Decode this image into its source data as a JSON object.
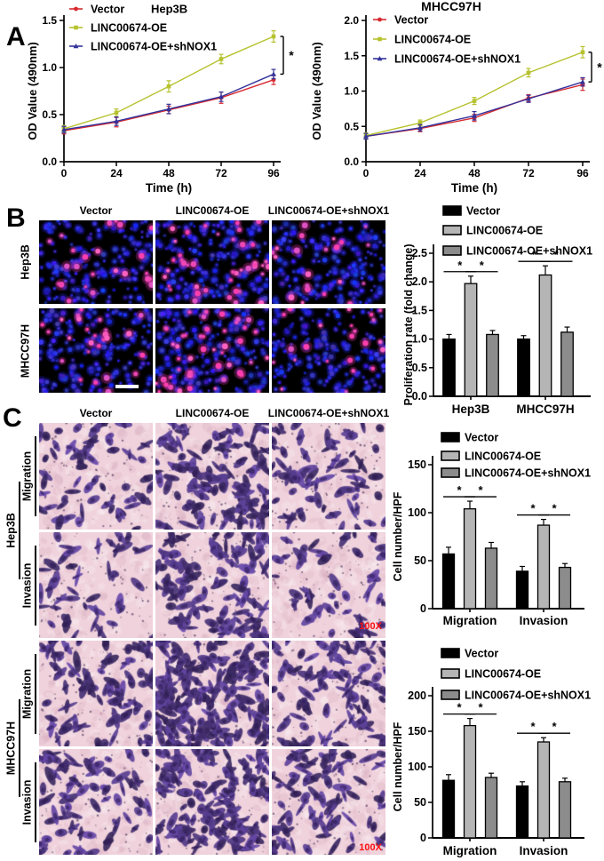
{
  "panels": {
    "a": "A",
    "b": "B",
    "c": "C"
  },
  "colors": {
    "red": "#d62a30",
    "olive": "#b6c22e",
    "blue": "#33339c",
    "bar_black": "#000000",
    "bar_light": "#b5b5b5",
    "bar_mid": "#8c8c8c",
    "edu_background": "#000000",
    "edu_blue": "#2a2ae0",
    "edu_pink": "#ef4cb8",
    "transwell_background": "#f0d2dc",
    "transwell_cell": "#5a3d8c",
    "mag_red": "#ff1010"
  },
  "chart_data": [
    {
      "id": "hep3b_od",
      "type": "line",
      "title": "Hep3B",
      "xlabel": "Time (h)",
      "ylabel": "OD Value (490nm)",
      "x": [
        0,
        24,
        48,
        72,
        96
      ],
      "xticklabels": [
        "0",
        "24",
        "48",
        "72",
        "96"
      ],
      "ylim": [
        0,
        1.5
      ],
      "yticks": [
        0,
        0.5,
        1,
        1.5
      ],
      "tick_decimals": 1,
      "legend_position": "top-left-inside",
      "series": [
        {
          "name": "Vector",
          "color": "#d62a30",
          "marker": "circle",
          "values": [
            0.33,
            0.42,
            0.55,
            0.68,
            0.87
          ],
          "errors": [
            0.035,
            0.05,
            0.04,
            0.06,
            0.05
          ]
        },
        {
          "name": "LINC00674-OE",
          "color": "#b6c22e",
          "marker": "square",
          "values": [
            0.35,
            0.52,
            0.8,
            1.09,
            1.33
          ],
          "errors": [
            0.035,
            0.04,
            0.06,
            0.05,
            0.06
          ]
        },
        {
          "name": "LINC00674-OE+shNOX1",
          "color": "#33339c",
          "marker": "triangle",
          "values": [
            0.34,
            0.43,
            0.56,
            0.69,
            0.93
          ],
          "errors": [
            0.035,
            0.045,
            0.05,
            0.05,
            0.05
          ]
        }
      ],
      "significance": {
        "label": "*",
        "from_series": 1,
        "to_series": 2,
        "at_x": 96
      }
    },
    {
      "id": "mhcc97h_od",
      "type": "line",
      "title": "MHCC97H",
      "xlabel": "Time (h)",
      "ylabel": "OD Value (490nm)",
      "x": [
        0,
        24,
        48,
        72,
        96
      ],
      "xticklabels": [
        "0",
        "24",
        "48",
        "72",
        "96"
      ],
      "ylim": [
        0,
        2.0
      ],
      "yticks": [
        0,
        0.5,
        1,
        1.5,
        2
      ],
      "tick_decimals": 1,
      "legend_position": "top-left-inside",
      "series": [
        {
          "name": "Vector",
          "color": "#d62a30",
          "marker": "circle",
          "values": [
            0.36,
            0.47,
            0.62,
            0.9,
            1.09
          ],
          "errors": [
            0.04,
            0.045,
            0.05,
            0.05,
            0.08
          ]
        },
        {
          "name": "LINC00674-OE",
          "color": "#b6c22e",
          "marker": "square",
          "values": [
            0.37,
            0.55,
            0.86,
            1.26,
            1.55
          ],
          "errors": [
            0.04,
            0.04,
            0.05,
            0.06,
            0.08
          ]
        },
        {
          "name": "LINC00674-OE+shNOX1",
          "color": "#33339c",
          "marker": "triangle",
          "values": [
            0.36,
            0.48,
            0.65,
            0.89,
            1.13
          ],
          "errors": [
            0.04,
            0.045,
            0.06,
            0.05,
            0.06
          ]
        }
      ],
      "significance": {
        "label": "*",
        "from_series": 1,
        "to_series": 2,
        "at_x": 96
      }
    },
    {
      "id": "edu_proliferation",
      "type": "bar",
      "ylabel": "Proliferation rate (fold change)",
      "categories": [
        "Hep3B",
        "MHCC97H"
      ],
      "ylim": [
        0,
        2.5
      ],
      "yticks": [
        0,
        0.5,
        1,
        1.5,
        2,
        2.5
      ],
      "tick_decimals": 1,
      "legend_position": "top",
      "series": [
        {
          "name": "Vector",
          "color": "#000000",
          "values": [
            1.0,
            1.0
          ],
          "errors": [
            0.08,
            0.06
          ]
        },
        {
          "name": "LINC00674-OE",
          "color": "#b5b5b5",
          "values": [
            1.97,
            2.12
          ],
          "errors": [
            0.13,
            0.16
          ]
        },
        {
          "name": "LINC00674-OE+shNOX1",
          "color": "#8c8c8c",
          "values": [
            1.08,
            1.12
          ],
          "errors": [
            0.07,
            0.09
          ]
        }
      ],
      "significance": {
        "label": "*",
        "pairs": [
          [
            0,
            1
          ],
          [
            1,
            2
          ]
        ]
      }
    },
    {
      "id": "hep3b_transwell",
      "type": "bar",
      "ylabel": "Cell number/HPF",
      "categories": [
        "Migration",
        "Invasion"
      ],
      "ylim": [
        0,
        150
      ],
      "yticks": [
        0,
        50,
        100,
        150
      ],
      "tick_decimals": 0,
      "legend_position": "top",
      "series": [
        {
          "name": "Vector",
          "color": "#000000",
          "values": [
            57,
            39
          ],
          "errors": [
            7,
            5
          ]
        },
        {
          "name": "LINC00674-OE",
          "color": "#b5b5b5",
          "values": [
            104,
            87
          ],
          "errors": [
            8,
            6
          ]
        },
        {
          "name": "LINC00674-OE+shNOX1",
          "color": "#8c8c8c",
          "values": [
            63,
            43
          ],
          "errors": [
            6,
            4
          ]
        }
      ],
      "significance": {
        "label": "*",
        "pairs": [
          [
            0,
            1
          ],
          [
            1,
            2
          ]
        ]
      }
    },
    {
      "id": "mhcc97h_transwell",
      "type": "bar",
      "ylabel": "Cell number/HPF",
      "categories": [
        "Migration",
        "Invasion"
      ],
      "ylim": [
        0,
        200
      ],
      "yticks": [
        0,
        50,
        100,
        150,
        200
      ],
      "tick_decimals": 0,
      "legend_position": "top",
      "series": [
        {
          "name": "Vector",
          "color": "#000000",
          "values": [
            81,
            73
          ],
          "errors": [
            8,
            6
          ]
        },
        {
          "name": "LINC00674-OE",
          "color": "#b5b5b5",
          "values": [
            158,
            135
          ],
          "errors": [
            10,
            6
          ]
        },
        {
          "name": "LINC00674-OE+shNOX1",
          "color": "#8c8c8c",
          "values": [
            85,
            79
          ],
          "errors": [
            6,
            5
          ]
        }
      ],
      "significance": {
        "label": "*",
        "pairs": [
          [
            0,
            1
          ],
          [
            1,
            2
          ]
        ]
      }
    }
  ],
  "panelB": {
    "col_headers": [
      "Vector",
      "LINC00674-OE",
      "LINC00674-OE+shNOX1"
    ],
    "row_labels": [
      "Hep3B",
      "MHCC97H"
    ],
    "has_scale_bar": true,
    "images": [
      {
        "row": "Hep3B",
        "col": "Vector",
        "blue_cells": 180,
        "pink_cells": 24
      },
      {
        "row": "Hep3B",
        "col": "LINC00674-OE",
        "blue_cells": 190,
        "pink_cells": 42
      },
      {
        "row": "Hep3B",
        "col": "LINC00674-OE+shNOX1",
        "blue_cells": 175,
        "pink_cells": 21
      },
      {
        "row": "MHCC97H",
        "col": "Vector",
        "blue_cells": 185,
        "pink_cells": 26
      },
      {
        "row": "MHCC97H",
        "col": "LINC00674-OE",
        "blue_cells": 195,
        "pink_cells": 46
      },
      {
        "row": "MHCC97H",
        "col": "LINC00674-OE+shNOX1",
        "blue_cells": 180,
        "pink_cells": 23
      }
    ]
  },
  "panelC": {
    "col_headers": [
      "Vector",
      "LINC00674-OE",
      "LINC00674-OE+shNOX1"
    ],
    "groups": [
      {
        "name": "Hep3B",
        "rows": [
          "Migration",
          "Invasion"
        ]
      },
      {
        "name": "MHCC97H",
        "rows": [
          "Migration",
          "Invasion"
        ]
      }
    ],
    "magnification_label": "100X",
    "images": [
      {
        "group": "Hep3B",
        "row": "Migration",
        "col": "Vector",
        "cells": 60
      },
      {
        "group": "Hep3B",
        "row": "Migration",
        "col": "LINC00674-OE",
        "cells": 112
      },
      {
        "group": "Hep3B",
        "row": "Migration",
        "col": "LINC00674-OE+shNOX1",
        "cells": 68
      },
      {
        "group": "Hep3B",
        "row": "Invasion",
        "col": "Vector",
        "cells": 42
      },
      {
        "group": "Hep3B",
        "row": "Invasion",
        "col": "LINC00674-OE",
        "cells": 98
      },
      {
        "group": "Hep3B",
        "row": "Invasion",
        "col": "LINC00674-OE+shNOX1",
        "cells": 48
      },
      {
        "group": "MHCC97H",
        "row": "Migration",
        "col": "Vector",
        "cells": 85
      },
      {
        "group": "MHCC97H",
        "row": "Migration",
        "col": "LINC00674-OE",
        "cells": 190
      },
      {
        "group": "MHCC97H",
        "row": "Migration",
        "col": "LINC00674-OE+shNOX1",
        "cells": 92
      },
      {
        "group": "MHCC97H",
        "row": "Invasion",
        "col": "Vector",
        "cells": 72
      },
      {
        "group": "MHCC97H",
        "row": "Invasion",
        "col": "LINC00674-OE",
        "cells": 140
      },
      {
        "group": "MHCC97H",
        "row": "Invasion",
        "col": "LINC00674-OE+shNOX1",
        "cells": 80
      }
    ]
  }
}
